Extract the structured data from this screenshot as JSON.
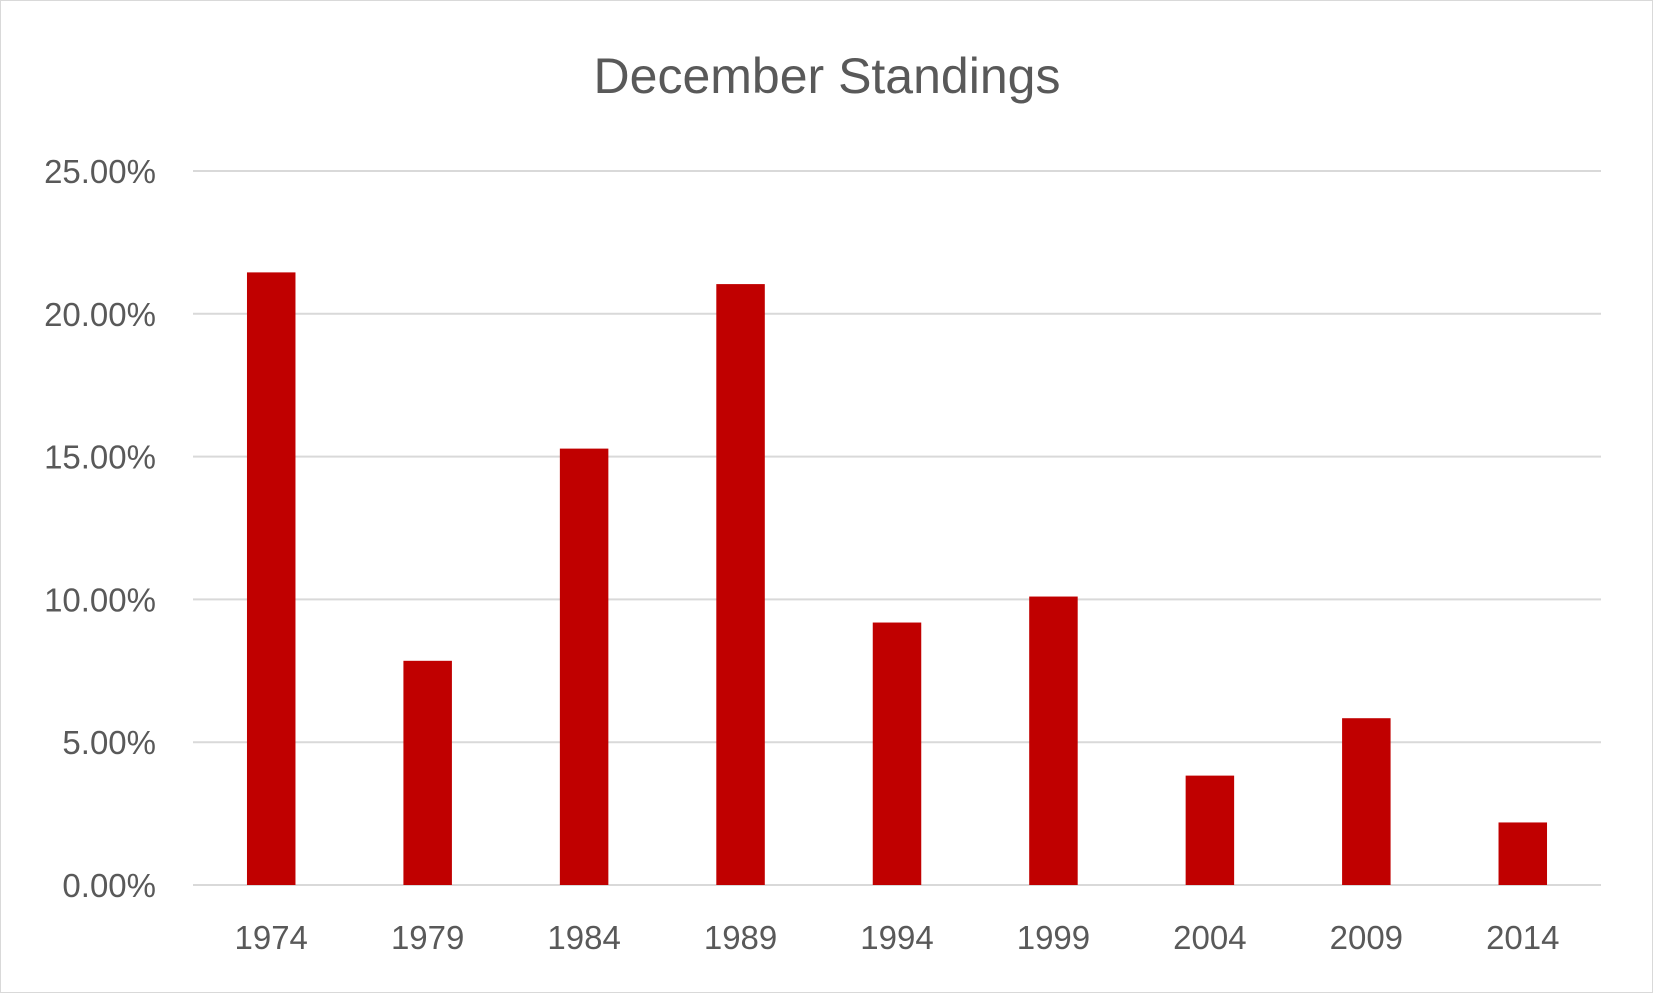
{
  "chart_data": {
    "type": "bar",
    "title": "December Standings",
    "xlabel": "",
    "ylabel": "",
    "categories": [
      "1974",
      "1979",
      "1984",
      "1989",
      "1994",
      "1999",
      "2004",
      "2009",
      "2014"
    ],
    "series": [
      {
        "values": [
          0.2145,
          0.0785,
          0.1528,
          0.2104,
          0.0919,
          0.101,
          0.0383,
          0.0584,
          0.0219
        ],
        "color": "#c00000"
      }
    ],
    "ylim": [
      0,
      0.25
    ],
    "yticks": [
      0,
      0.05,
      0.1,
      0.15,
      0.2,
      0.25
    ],
    "ytick_labels": [
      "0.00%",
      "5.00%",
      "10.00%",
      "15.00%",
      "20.00%",
      "25.00%"
    ],
    "grid": true,
    "legend": "none",
    "colors": {
      "bar": "#c00000",
      "grid": "#d9d9d9",
      "text": "#595959"
    }
  }
}
